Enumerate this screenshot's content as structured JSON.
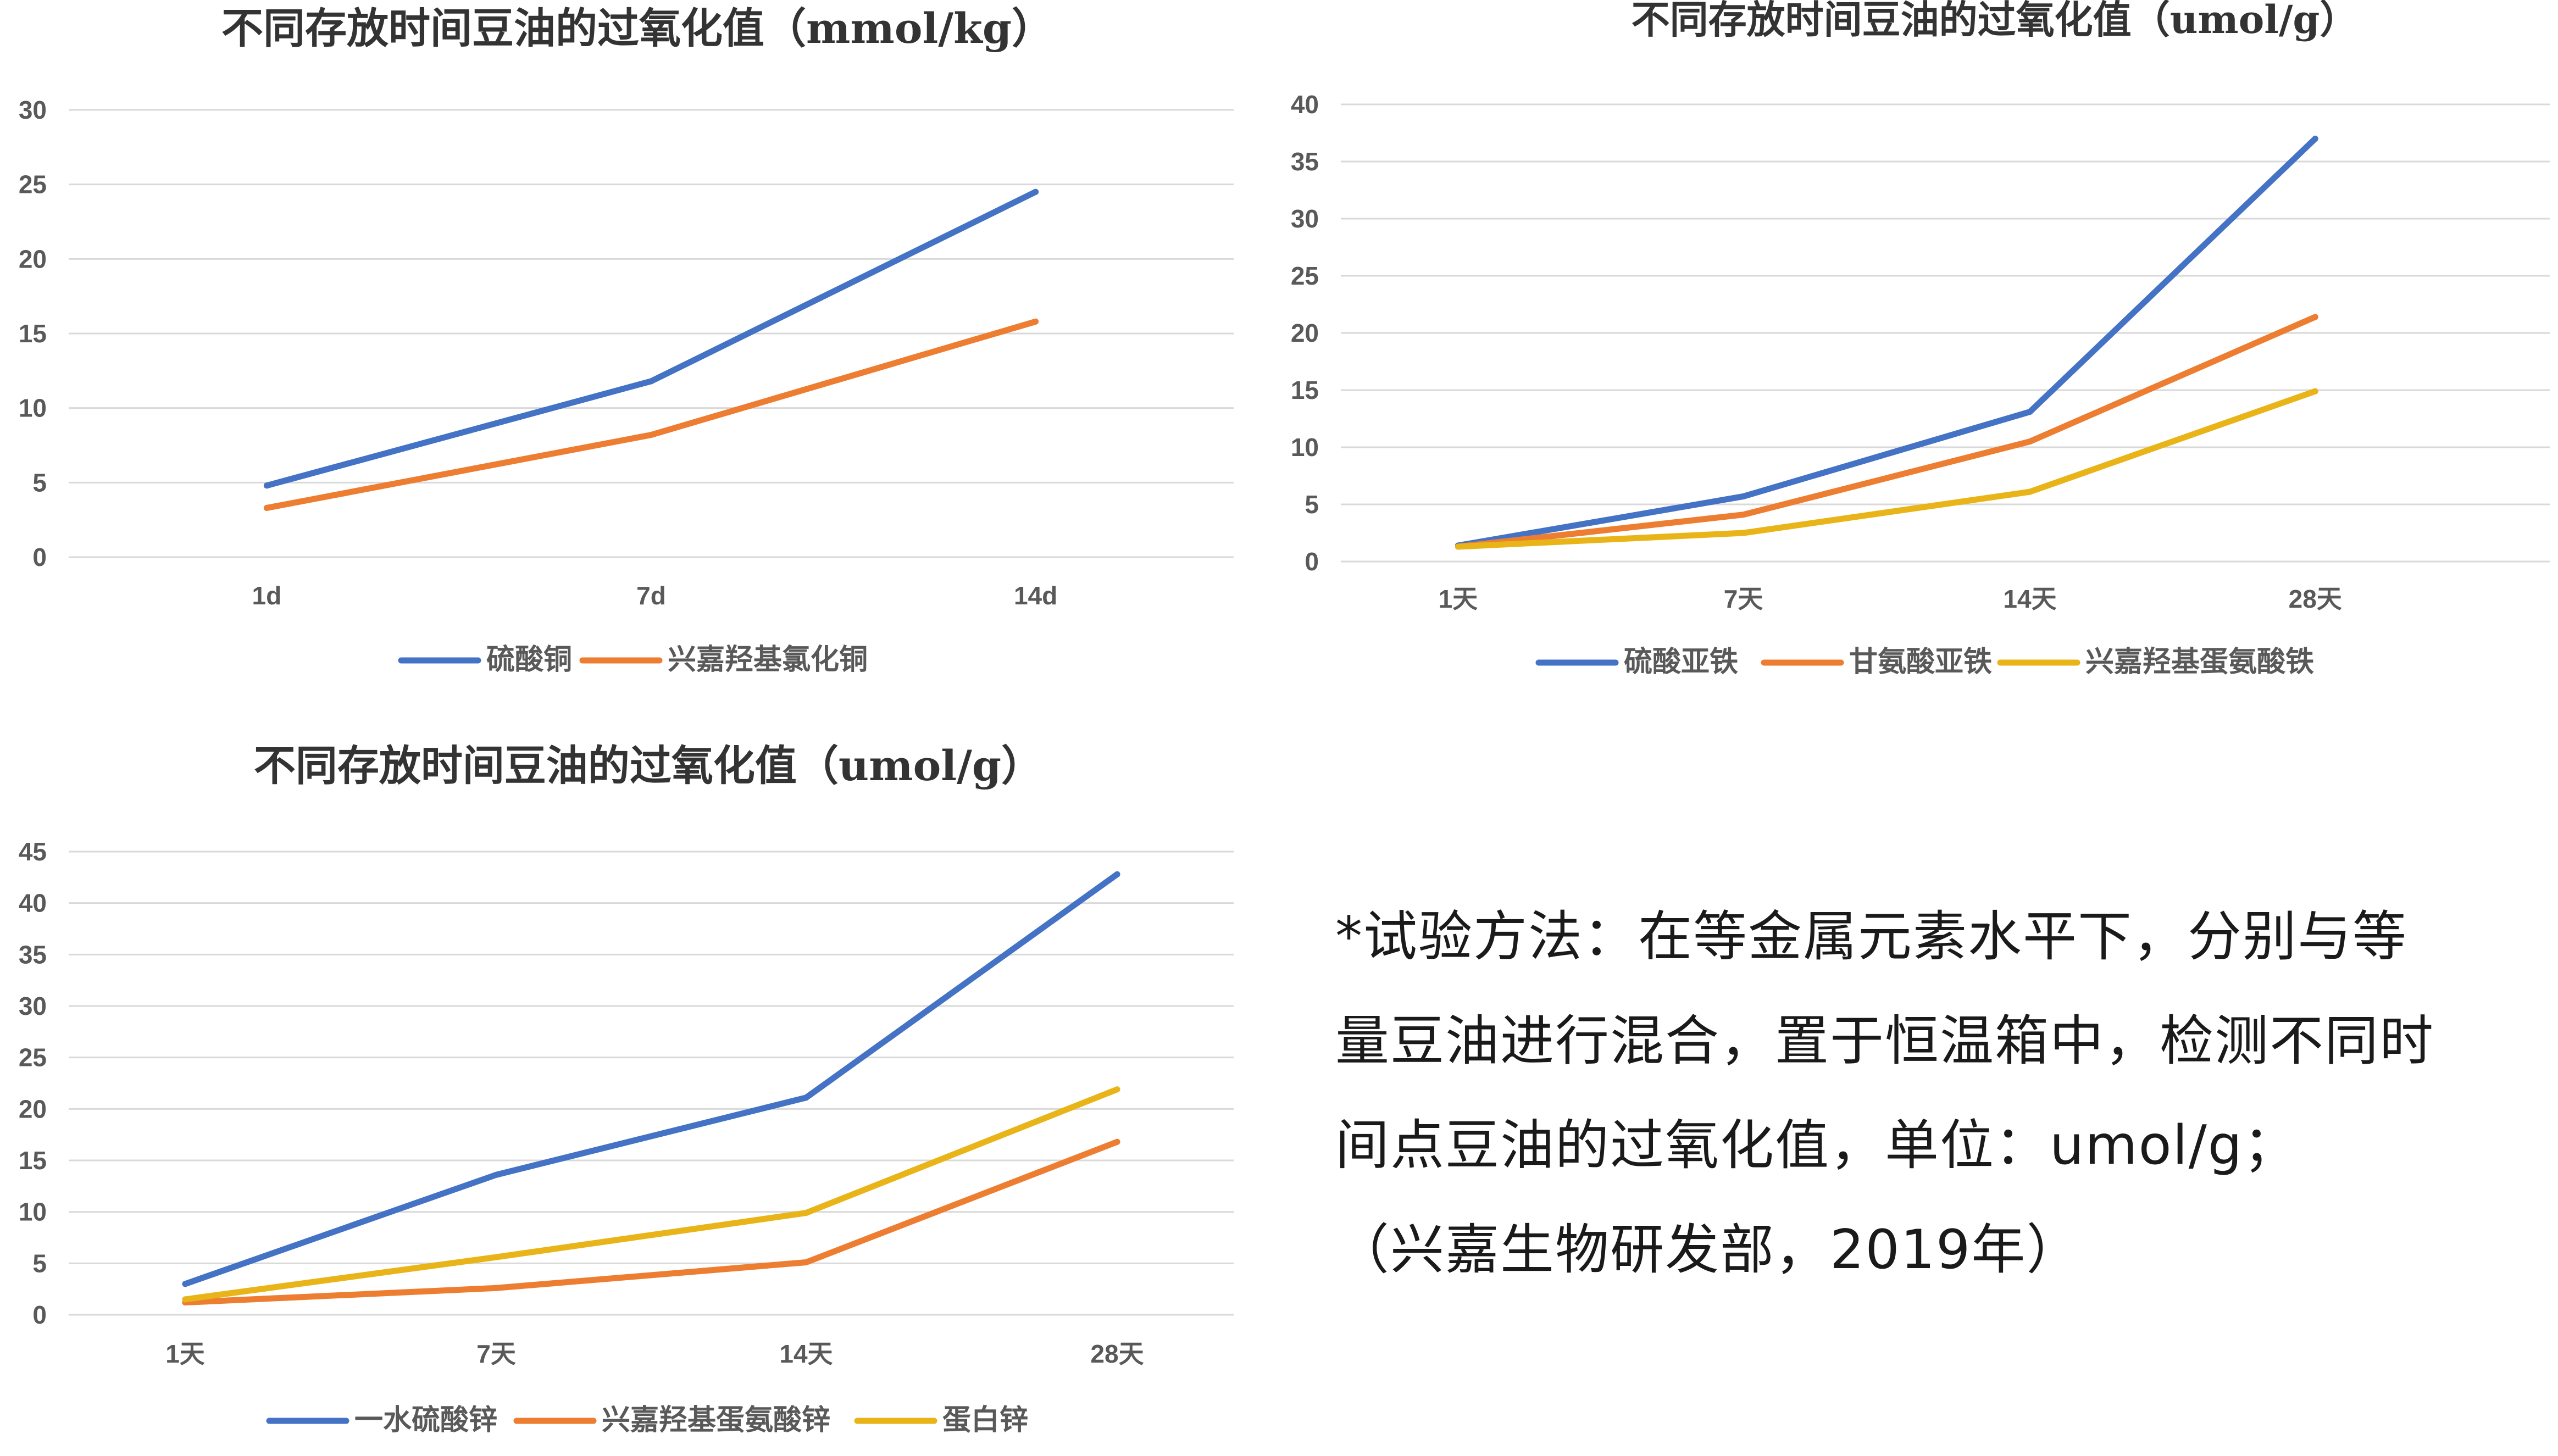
{
  "chart_data": [
    {
      "type": "line",
      "title": "不同存放时间豆油的过氧化值（mmol/kg）",
      "categories": [
        "1d",
        "7d",
        "14d"
      ],
      "ylim": [
        0,
        30
      ],
      "yticks": [
        0,
        5,
        10,
        15,
        20,
        25,
        30
      ],
      "grid": true,
      "legend": "bottom",
      "series": [
        {
          "name": "硫酸铜",
          "color": "#4472C4",
          "values": [
            4.8,
            11.8,
            24.5
          ]
        },
        {
          "name": "兴嘉羟基氯化铜",
          "color": "#ED7D31",
          "values": [
            3.3,
            8.2,
            15.8
          ]
        }
      ]
    },
    {
      "type": "line",
      "title": "不同存放时间豆油的过氧化值（umol/g）",
      "categories": [
        "1天",
        "7天",
        "14天",
        "28天"
      ],
      "ylim": [
        0,
        40
      ],
      "yticks": [
        0,
        5,
        10,
        15,
        20,
        25,
        30,
        35,
        40
      ],
      "grid": true,
      "legend": "bottom",
      "series": [
        {
          "name": "硫酸亚铁",
          "color": "#4472C4",
          "values": [
            1.4,
            5.7,
            13.1,
            37.0
          ]
        },
        {
          "name": "甘氨酸亚铁",
          "color": "#ED7D31",
          "values": [
            1.3,
            4.1,
            10.5,
            21.4
          ]
        },
        {
          "name": "兴嘉羟基蛋氨酸铁",
          "color": "#E8B418",
          "values": [
            1.3,
            2.5,
            6.1,
            14.9
          ]
        }
      ]
    },
    {
      "type": "line",
      "title": "不同存放时间豆油的过氧化值（umol/g）",
      "categories": [
        "1天",
        "7天",
        "14天",
        "28天"
      ],
      "ylim": [
        0,
        45
      ],
      "yticks": [
        0,
        5,
        10,
        15,
        20,
        25,
        30,
        35,
        40,
        45
      ],
      "grid": true,
      "legend": "bottom",
      "series": [
        {
          "name": "一水硫酸锌",
          "color": "#4472C4",
          "values": [
            3.0,
            13.6,
            21.1,
            42.8
          ]
        },
        {
          "name": "兴嘉羟基蛋氨酸锌",
          "color": "#ED7D31",
          "values": [
            1.2,
            2.6,
            5.1,
            16.8
          ]
        },
        {
          "name": "蛋白锌",
          "color": "#E8B418",
          "values": [
            1.5,
            5.6,
            9.9,
            21.9
          ]
        }
      ]
    }
  ],
  "note": {
    "line1": "*试验方法：在等金属元素水平下，分别与等",
    "line2": "量豆油进行混合，置于恒温箱中，检测不同时",
    "line3": "间点豆油的过氧化值，单位：umol/g；",
    "line4": "（兴嘉生物研发部，2019年）"
  }
}
